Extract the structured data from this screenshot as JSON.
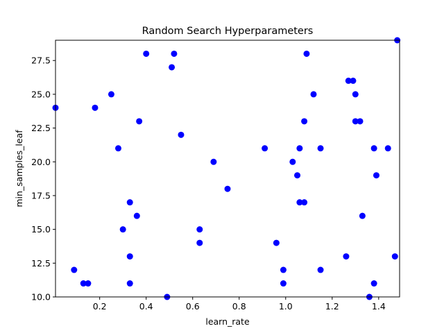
{
  "chart_data": {
    "type": "scatter",
    "title": "Random Search Hyperparameters",
    "xlabel": "learn_rate",
    "ylabel": "min_samples_leaf",
    "xlim": [
      0.01,
      1.49
    ],
    "ylim": [
      10.0,
      29.0
    ],
    "xticks": [
      0.2,
      0.4,
      0.6,
      0.8,
      1.0,
      1.2,
      1.4
    ],
    "xtick_labels": [
      "0.2",
      "0.4",
      "0.6",
      "0.8",
      "1.0",
      "1.2",
      "1.4"
    ],
    "yticks": [
      10.0,
      12.5,
      15.0,
      17.5,
      20.0,
      22.5,
      25.0,
      27.5
    ],
    "ytick_labels": [
      "10.0",
      "12.5",
      "15.0",
      "17.5",
      "20.0",
      "22.5",
      "25.0",
      "27.5"
    ],
    "grid": false,
    "marker_color": "#0000ff",
    "x": [
      0.01,
      0.09,
      0.13,
      0.15,
      0.18,
      0.25,
      0.28,
      0.3,
      0.33,
      0.33,
      0.33,
      0.36,
      0.37,
      0.4,
      0.49,
      0.51,
      0.52,
      0.55,
      0.63,
      0.63,
      0.69,
      0.75,
      0.91,
      0.96,
      0.99,
      0.99,
      1.03,
      1.05,
      1.06,
      1.06,
      1.08,
      1.08,
      1.09,
      1.12,
      1.15,
      1.15,
      1.26,
      1.27,
      1.29,
      1.3,
      1.3,
      1.32,
      1.33,
      1.36,
      1.38,
      1.38,
      1.39,
      1.44,
      1.47,
      1.48
    ],
    "y": [
      24,
      12,
      11,
      11,
      24,
      25,
      21,
      15,
      17,
      13,
      11,
      16,
      23,
      28,
      10,
      27,
      28,
      22,
      15,
      14,
      20,
      18,
      21,
      14,
      12,
      11,
      20,
      19,
      21,
      17,
      23,
      17,
      28,
      25,
      21,
      12,
      13,
      26,
      26,
      25,
      23,
      23,
      16,
      10,
      21,
      11,
      19,
      21,
      13,
      29
    ]
  }
}
